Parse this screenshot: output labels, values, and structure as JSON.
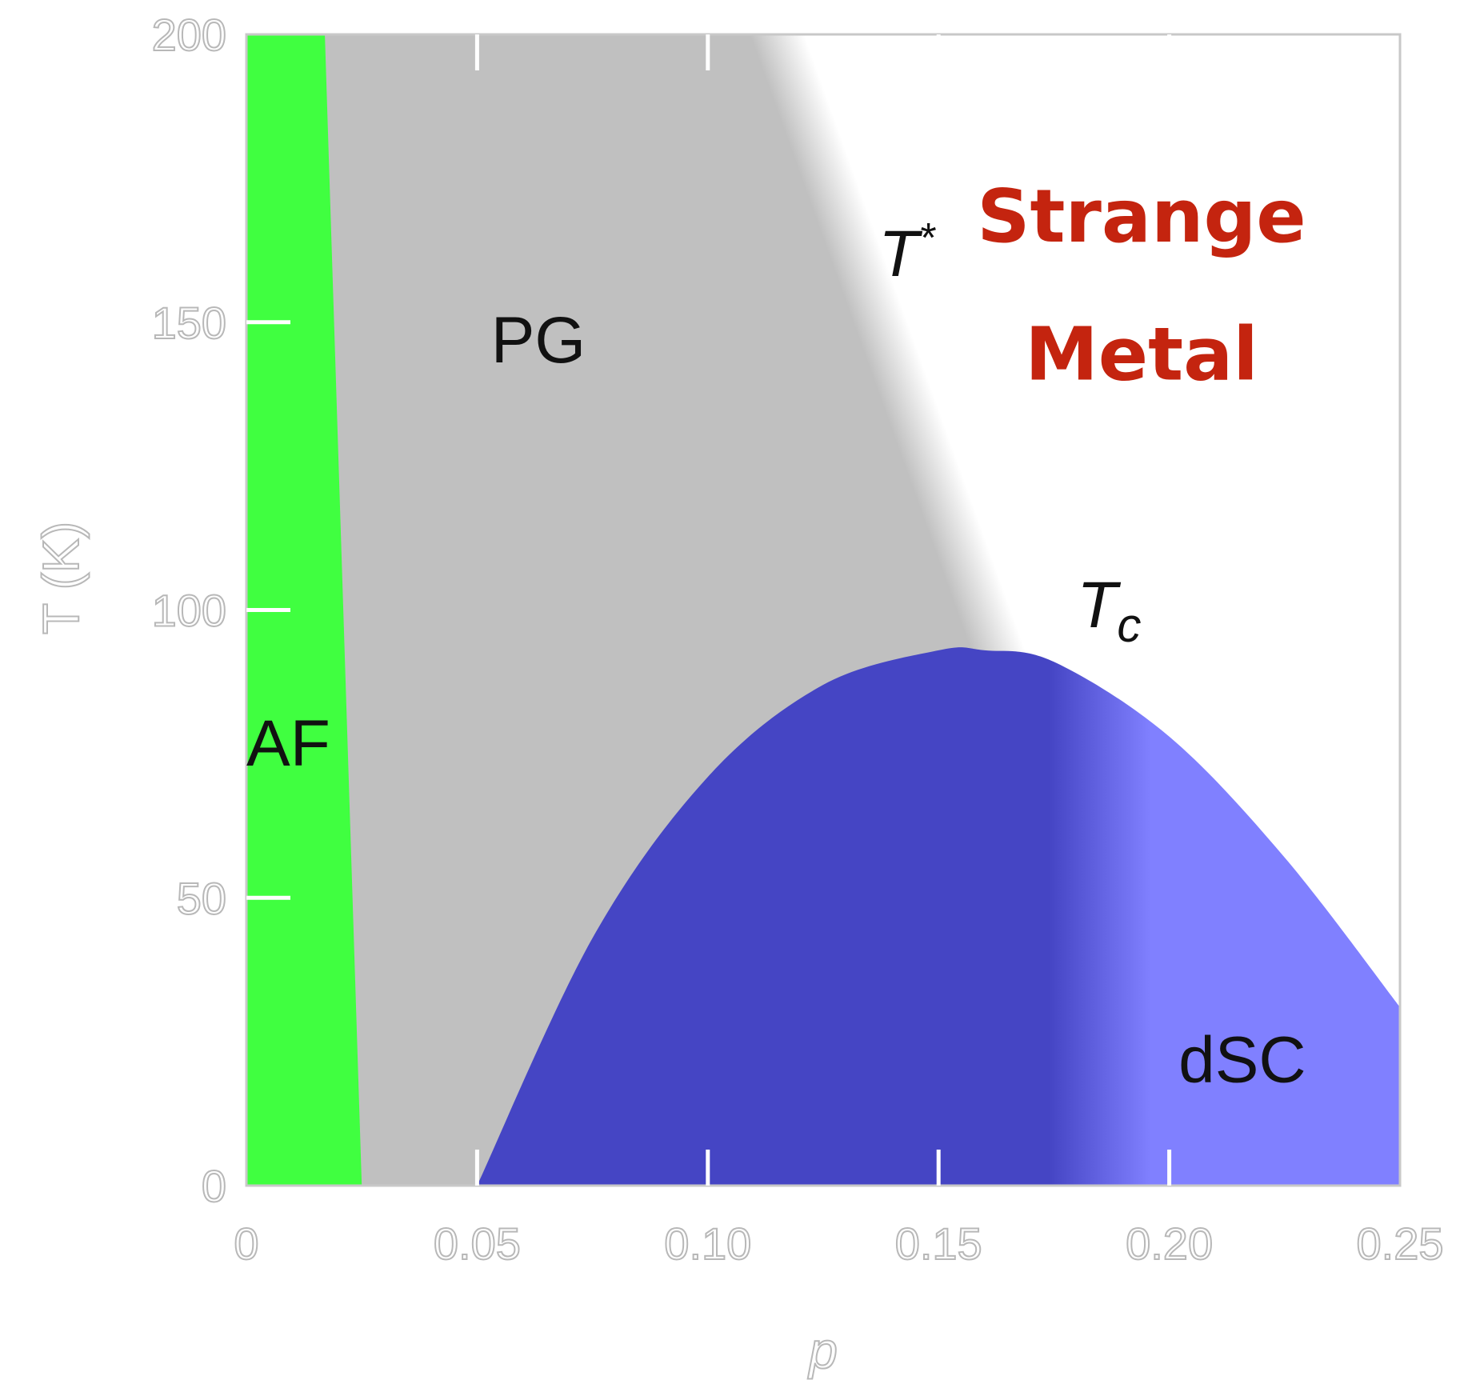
{
  "chart_data": {
    "type": "area",
    "title": "",
    "xlabel": "p",
    "ylabel": "T (K)",
    "xlim": [
      0,
      0.25
    ],
    "ylim": [
      0,
      200
    ],
    "x_ticks": [
      0,
      0.05,
      0.1,
      0.15,
      0.2,
      0.25
    ],
    "x_tick_labels": [
      "0",
      "0.05",
      "0.10",
      "0.15",
      "0.20",
      "0.25"
    ],
    "y_ticks": [
      0,
      50,
      100,
      150,
      200
    ],
    "y_tick_labels": [
      "0",
      "50",
      "100",
      "150",
      "200"
    ],
    "grid": false,
    "regions": [
      {
        "label": "AF",
        "color": "#40ff40",
        "boundary": {
          "x": [
            0.017,
            0.018,
            0.019,
            0.02,
            0.021,
            0.022,
            0.023,
            0.024,
            0.025
          ],
          "y": [
            200,
            175,
            150,
            125,
            100,
            75,
            50,
            25,
            0
          ]
        }
      },
      {
        "label": "PG",
        "color": "#c0c0c0",
        "T_star_line": {
          "x": [
            0.115,
            0.162
          ],
          "y": [
            200,
            95
          ]
        }
      },
      {
        "label": "dSC",
        "color_pseudogap_side": "#4545c4",
        "color_overdoped_side": "#8080ff",
        "Tc_dome": {
          "x": [
            0.05,
            0.075,
            0.1,
            0.125,
            0.15,
            0.16,
            0.175,
            0.2,
            0.225,
            0.25
          ],
          "y": [
            0,
            43,
            71,
            87,
            93,
            93,
            91,
            78,
            57,
            31
          ]
        }
      }
    ],
    "annotations": {
      "pg": "PG",
      "af": "AF",
      "dsc": "dSC",
      "t_star": "T",
      "t_star_sup": "*",
      "tc": "T",
      "tc_sub": "c",
      "strange_line1": "Strange",
      "strange_line2": "Metal"
    },
    "colors": {
      "strange_metal": "#c4240f",
      "axis": "#b8b8b8"
    }
  }
}
